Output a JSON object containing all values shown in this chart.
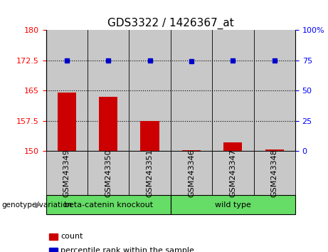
{
  "title": "GDS3322 / 1426367_at",
  "samples": [
    "GSM243349",
    "GSM243350",
    "GSM243351",
    "GSM243346",
    "GSM243347",
    "GSM243348"
  ],
  "bar_values": [
    164.6,
    163.5,
    157.5,
    150.25,
    152.2,
    150.5
  ],
  "bar_base": 150,
  "percentile_values": [
    172.5,
    172.5,
    172.5,
    172.3,
    172.5,
    172.5
  ],
  "bar_color": "#cc0000",
  "dot_color": "#0000cc",
  "ylim_left": [
    150,
    180
  ],
  "ylim_right": [
    0,
    100
  ],
  "yticks_left": [
    150,
    157.5,
    165,
    172.5,
    180
  ],
  "yticks_right": [
    0,
    25,
    50,
    75,
    100
  ],
  "ytick_labels_left": [
    "150",
    "157.5",
    "165",
    "172.5",
    "180"
  ],
  "ytick_labels_right": [
    "0",
    "25",
    "50",
    "75",
    "100%"
  ],
  "hlines": [
    157.5,
    165,
    172.5
  ],
  "groups": [
    {
      "label": "beta-catenin knockout",
      "start": 0,
      "end": 3,
      "color": "#66dd66"
    },
    {
      "label": "wild type",
      "start": 3,
      "end": 6,
      "color": "#66dd66"
    }
  ],
  "group_label_prefix": "genotype/variation",
  "legend_items": [
    {
      "label": "count",
      "color": "#cc0000"
    },
    {
      "label": "percentile rank within the sample",
      "color": "#0000cc"
    }
  ],
  "col_bg_color": "#c8c8c8",
  "title_fontsize": 11,
  "tick_fontsize": 8,
  "label_fontsize": 8
}
